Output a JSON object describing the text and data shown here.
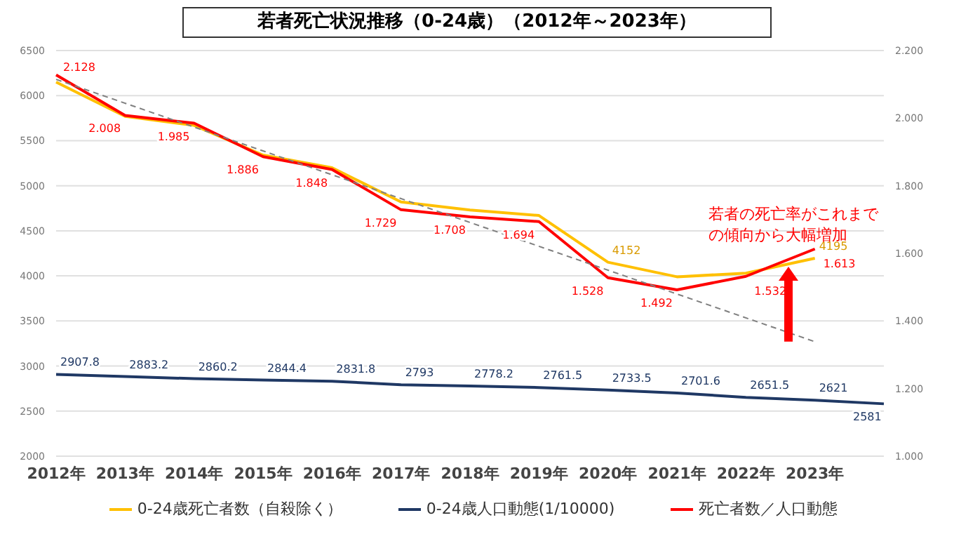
{
  "chart_data": {
    "type": "line",
    "title": "若者死亡状況推移（0-24歳）（2012年～2023年）",
    "categories": [
      "2012年",
      "2013年",
      "2014年",
      "2015年",
      "2016年",
      "2017年",
      "2018年",
      "2019年",
      "2020年",
      "2021年",
      "2022年",
      "2023年",
      null
    ],
    "series": [
      {
        "name": "0-24歳死亡者数（自殺除く）",
        "color": "#ffc000",
        "values": [
          6150,
          5770,
          5670,
          5340,
          5200,
          4820,
          4730,
          4670,
          4152,
          3990,
          4030,
          4195,
          null
        ],
        "value_labels": [
          null,
          null,
          null,
          null,
          null,
          null,
          null,
          null,
          "4152",
          null,
          null,
          "4195",
          null
        ]
      },
      {
        "name": "0-24歳人口動態(1/10000)",
        "color": "#1f3864",
        "values": [
          2907.8,
          2883.2,
          2860.2,
          2844.4,
          2831.8,
          2793,
          2778.2,
          2761.5,
          2733.5,
          2701.6,
          2651.5,
          2621,
          2581
        ],
        "value_labels": [
          "2907.8",
          "2883.2",
          "2860.2",
          "2844.4",
          "2831.8",
          "2793",
          "2778.2",
          "2761.5",
          "2733.5",
          "2701.6",
          "2651.5",
          "2621",
          "2581"
        ]
      },
      {
        "name": "死亡者数／人口動態",
        "color": "#ff0000",
        "axis": "y2",
        "values": [
          2.128,
          2.008,
          1.985,
          1.886,
          1.848,
          1.729,
          1.708,
          1.694,
          1.528,
          1.492,
          1.532,
          1.613,
          null
        ],
        "value_labels": [
          "2.128",
          "2.008",
          "1.985",
          "1.886",
          "1.848",
          "1.729",
          "1.708",
          "1.694",
          "1.528",
          "1.492",
          "1.532",
          "1.613",
          null
        ]
      },
      {
        "color": "#808080",
        "line_style": "dashed",
        "values": [
          6180,
          null,
          null,
          null,
          null,
          null,
          null,
          null,
          null,
          null,
          null,
          3270,
          null
        ]
      }
    ],
    "ylim": [
      2000,
      6500
    ],
    "yticks": [
      2000,
      2500,
      3000,
      3500,
      4000,
      4500,
      5000,
      5500,
      6000,
      6500
    ],
    "y2lim": [
      1.0,
      2.2
    ],
    "y2ticks": [
      {
        "value": 1.0,
        "label": "1.000"
      },
      {
        "value": 1.2,
        "label": "1.200"
      },
      {
        "value": 1.4,
        "label": "1.400"
      },
      {
        "value": 1.6,
        "label": "1.600"
      },
      {
        "value": 1.8,
        "label": "1.800"
      },
      {
        "value": 2.0,
        "label": "2.000"
      },
      {
        "value": 2.2,
        "label": "2.200"
      }
    ],
    "grid": "y",
    "legend": "bottom",
    "marker": "none",
    "annotations": [
      "若者の死亡率がこれまでの傾向から大幅増加"
    ]
  }
}
